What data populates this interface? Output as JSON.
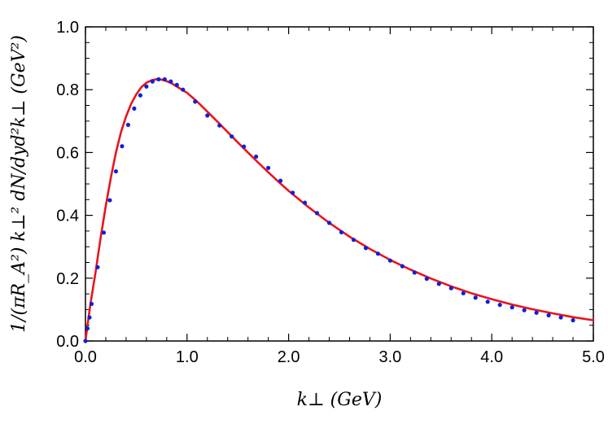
{
  "chart_data": {
    "type": "line",
    "title": "",
    "xlabel": "k⊥ (GeV)",
    "ylabel": "1/(πR_A²) k⊥² dN/dyd²k⊥ (GeV²)",
    "xlim": [
      0,
      5
    ],
    "ylim": [
      0,
      1
    ],
    "x_ticks": [
      0,
      1,
      2,
      3,
      4,
      5
    ],
    "x_tick_labels": [
      "0.0",
      "1.0",
      "2.0",
      "3.0",
      "4.0",
      "5.0"
    ],
    "y_ticks": [
      0,
      0.2,
      0.4,
      0.6,
      0.8,
      1.0
    ],
    "y_tick_labels": [
      "0.0",
      "0.2",
      "0.4",
      "0.6",
      "0.8",
      "1.0"
    ],
    "grid": false,
    "legend": "none",
    "series": [
      {
        "style": "line",
        "color": "#e8141c",
        "x": [
          0.0,
          0.02,
          0.05,
          0.1,
          0.15,
          0.2,
          0.25,
          0.3,
          0.35,
          0.4,
          0.45,
          0.5,
          0.55,
          0.6,
          0.65,
          0.7,
          0.75,
          0.8,
          0.85,
          0.9,
          1.0,
          1.1,
          1.2,
          1.3,
          1.4,
          1.5,
          1.6,
          1.7,
          1.8,
          1.9,
          2.0,
          2.2,
          2.4,
          2.6,
          2.8,
          3.0,
          3.2,
          3.4,
          3.6,
          3.8,
          4.0,
          4.2,
          4.4,
          4.6,
          4.8,
          5.0
        ],
        "y": [
          0.0,
          0.05,
          0.12,
          0.22,
          0.33,
          0.43,
          0.52,
          0.6,
          0.665,
          0.715,
          0.755,
          0.785,
          0.808,
          0.822,
          0.83,
          0.833,
          0.832,
          0.827,
          0.82,
          0.81,
          0.79,
          0.762,
          0.73,
          0.698,
          0.665,
          0.632,
          0.6,
          0.568,
          0.537,
          0.507,
          0.478,
          0.425,
          0.376,
          0.332,
          0.293,
          0.258,
          0.227,
          0.199,
          0.174,
          0.152,
          0.133,
          0.116,
          0.101,
          0.088,
          0.076,
          0.066
        ]
      },
      {
        "style": "markers",
        "color": "#1020d8",
        "x": [
          0.0,
          0.02,
          0.04,
          0.06,
          0.12,
          0.18,
          0.24,
          0.3,
          0.36,
          0.42,
          0.48,
          0.54,
          0.6,
          0.66,
          0.72,
          0.78,
          0.84,
          0.9,
          0.96,
          1.08,
          1.2,
          1.32,
          1.44,
          1.56,
          1.68,
          1.8,
          1.92,
          2.04,
          2.16,
          2.28,
          2.4,
          2.52,
          2.64,
          2.76,
          2.88,
          3.0,
          3.12,
          3.24,
          3.36,
          3.48,
          3.6,
          3.72,
          3.84,
          3.96,
          4.08,
          4.2,
          4.32,
          4.44,
          4.56,
          4.68,
          4.8
        ],
        "y": [
          0.0,
          0.04,
          0.075,
          0.118,
          0.235,
          0.345,
          0.448,
          0.54,
          0.62,
          0.688,
          0.74,
          0.782,
          0.81,
          0.826,
          0.833,
          0.833,
          0.826,
          0.815,
          0.8,
          0.762,
          0.718,
          0.686,
          0.651,
          0.619,
          0.587,
          0.551,
          0.51,
          0.472,
          0.44,
          0.407,
          0.376,
          0.346,
          0.322,
          0.296,
          0.278,
          0.256,
          0.238,
          0.218,
          0.198,
          0.182,
          0.168,
          0.152,
          0.138,
          0.125,
          0.115,
          0.107,
          0.098,
          0.09,
          0.082,
          0.075,
          0.066
        ]
      }
    ]
  }
}
